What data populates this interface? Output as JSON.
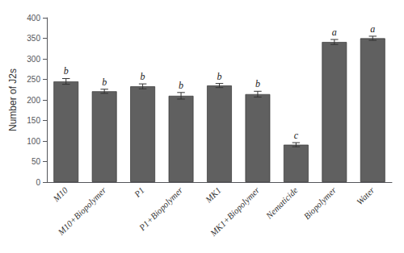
{
  "chart_data": {
    "type": "bar",
    "categories": [
      "M10",
      "M10+Biopolymer",
      "P1",
      "P1+Biopolymer",
      "MK1",
      "MK1+Biopolymer",
      "Nematicide",
      "Biopolymer",
      "Water"
    ],
    "values": [
      245,
      221,
      233,
      210,
      235,
      214,
      91,
      341,
      350
    ],
    "errors": [
      7,
      5,
      6,
      8,
      5,
      7,
      5,
      6,
      5
    ],
    "letters": [
      "b",
      "b",
      "b",
      "b",
      "b",
      "b",
      "c",
      "a",
      "a"
    ],
    "color": "#606060",
    "ylabel": "Number of J2s",
    "ylim": [
      0,
      400
    ],
    "yticks": [
      0,
      50,
      100,
      150,
      200,
      250,
      300,
      350,
      400
    ],
    "grid": false
  }
}
